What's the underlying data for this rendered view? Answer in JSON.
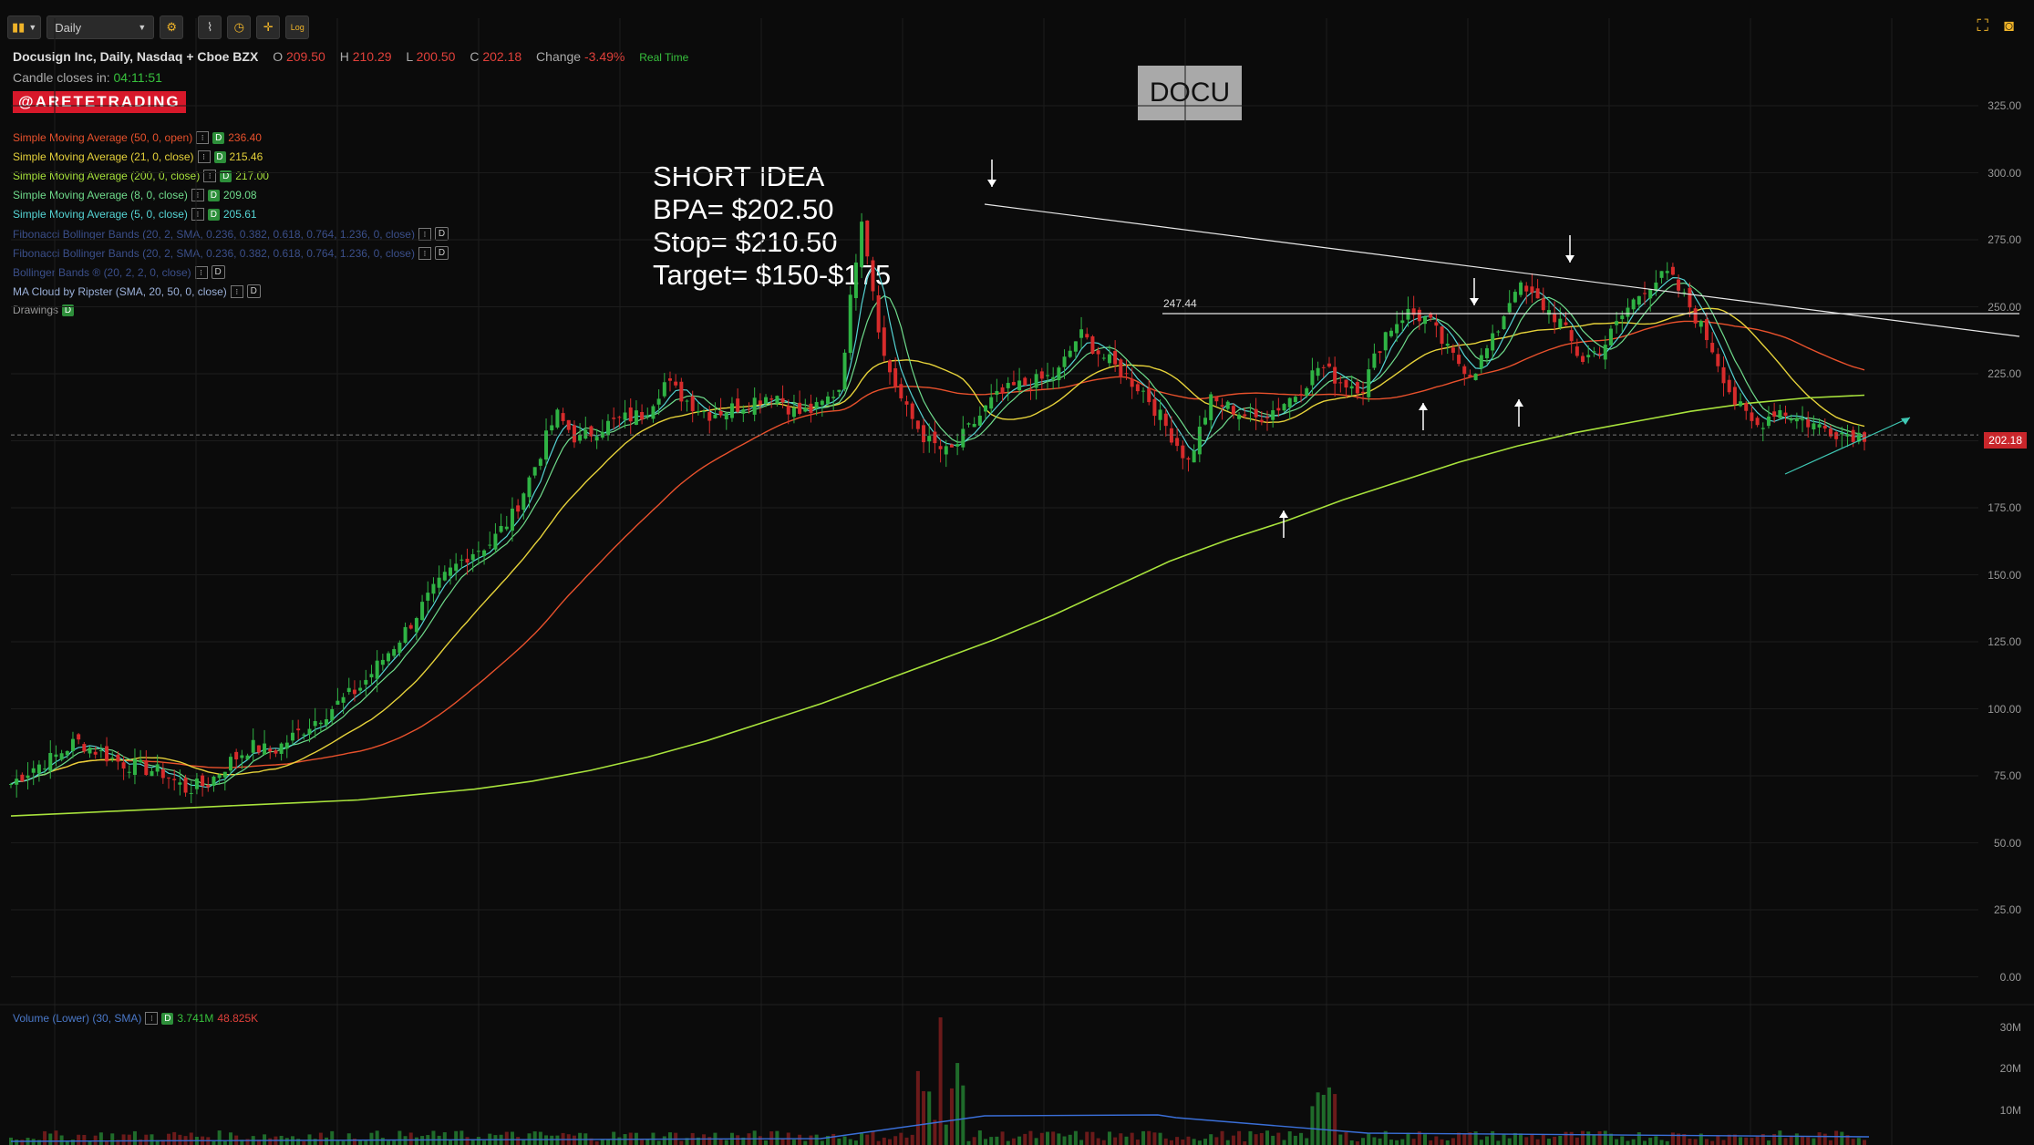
{
  "toolbar": {
    "timeframe": "Daily",
    "log_label": "Log"
  },
  "header": {
    "title": "Docusign Inc, Daily, Nasdaq + Cboe BZX",
    "o_label": "O",
    "o_value": "209.50",
    "h_label": "H",
    "h_value": "210.29",
    "l_label": "L",
    "l_value": "200.50",
    "c_label": "C",
    "c_value": "202.18",
    "change_label": "Change",
    "change_value": "-3.49%",
    "realtime": "Real Time",
    "candle_label": "Candle closes in:",
    "candle_value": "04:11:51"
  },
  "brand": "@ARETETRADING",
  "indicators": [
    {
      "label": "Simple Moving Average (50, 0, open)",
      "value": "236.40",
      "color": "#e8512c"
    },
    {
      "label": "Simple Moving Average (21, 0, close)",
      "value": "215.46",
      "color": "#e6d23a"
    },
    {
      "label": "Simple Moving Average (200, 0, close)",
      "value": "217.00",
      "color": "#a8e23c"
    },
    {
      "label": "Simple Moving Average (8, 0, close)",
      "value": "209.08",
      "color": "#6fdc8c"
    },
    {
      "label": "Simple Moving Average (5, 0, close)",
      "value": "205.61",
      "color": "#55d4d4"
    },
    {
      "label": "Fibonacci Bollinger Bands (20, 2, SMA, 0.236, 0.382, 0.618, 0.764, 1.236, 0, close)",
      "value": "",
      "color": "#3b4f8a"
    },
    {
      "label": "Fibonacci Bollinger Bands (20, 2, SMA, 0.236, 0.382, 0.618, 0.764, 1.236, 0, close)",
      "value": "",
      "color": "#3b4f8a"
    },
    {
      "label": "Bollinger Bands ® (20, 2, 2, 0, close)",
      "value": "",
      "color": "#3b4f8a"
    },
    {
      "label": "MA Cloud by Ripster (SMA, 20, 50, 0, close)",
      "value": "",
      "color": "#9bb0d8"
    },
    {
      "label": "Drawings",
      "value": "",
      "color": "#999999"
    }
  ],
  "ticker": "DOCU",
  "note": {
    "line1": "SHORT IDEA",
    "line2": "BPA= $202.50",
    "line3": "Stop= $210.50",
    "line4": "Target= $150-$175"
  },
  "level_label": "247.44",
  "price_tag": "202.18",
  "price_axis": [
    "325.00",
    "300.00",
    "275.00",
    "250.00",
    "225.00",
    "200.00",
    "175.00",
    "150.00",
    "125.00",
    "100.00",
    "75.00",
    "50.00",
    "25.00",
    "0.00"
  ],
  "volume": {
    "label": "Volume (Lower) (30, SMA)",
    "value1": "3.741M",
    "value2": "48.825K",
    "axis": [
      "30M",
      "20M",
      "10M"
    ]
  },
  "chart_data": {
    "type": "candlestick",
    "ylim": [
      0,
      335
    ],
    "resistance_level": 247.44,
    "last_close": 202.18,
    "close_path": [
      72,
      78,
      82,
      88,
      84,
      80,
      78,
      76,
      70,
      72,
      80,
      86,
      84,
      90,
      96,
      102,
      108,
      118,
      128,
      140,
      150,
      158,
      162,
      172,
      190,
      210,
      200,
      205,
      208,
      210,
      222,
      215,
      210,
      212,
      215,
      218,
      210,
      212,
      220,
      285,
      232,
      212,
      200,
      195,
      205,
      215,
      220,
      222,
      225,
      240,
      232,
      225,
      218,
      205,
      192,
      215,
      212,
      208,
      212,
      218,
      228,
      222,
      220,
      240,
      248,
      245,
      232,
      225,
      238,
      258,
      252,
      245,
      230,
      235,
      248,
      258,
      262,
      250,
      235,
      215,
      205,
      212,
      208,
      205,
      203,
      202
    ],
    "sma200_path": [
      60,
      61,
      62,
      63,
      64,
      65,
      66,
      68,
      70,
      73,
      77,
      82,
      88,
      95,
      102,
      110,
      118,
      126,
      135,
      145,
      155,
      163,
      170,
      178,
      185,
      192,
      198,
      203,
      207,
      211,
      214,
      216,
      217
    ]
  }
}
